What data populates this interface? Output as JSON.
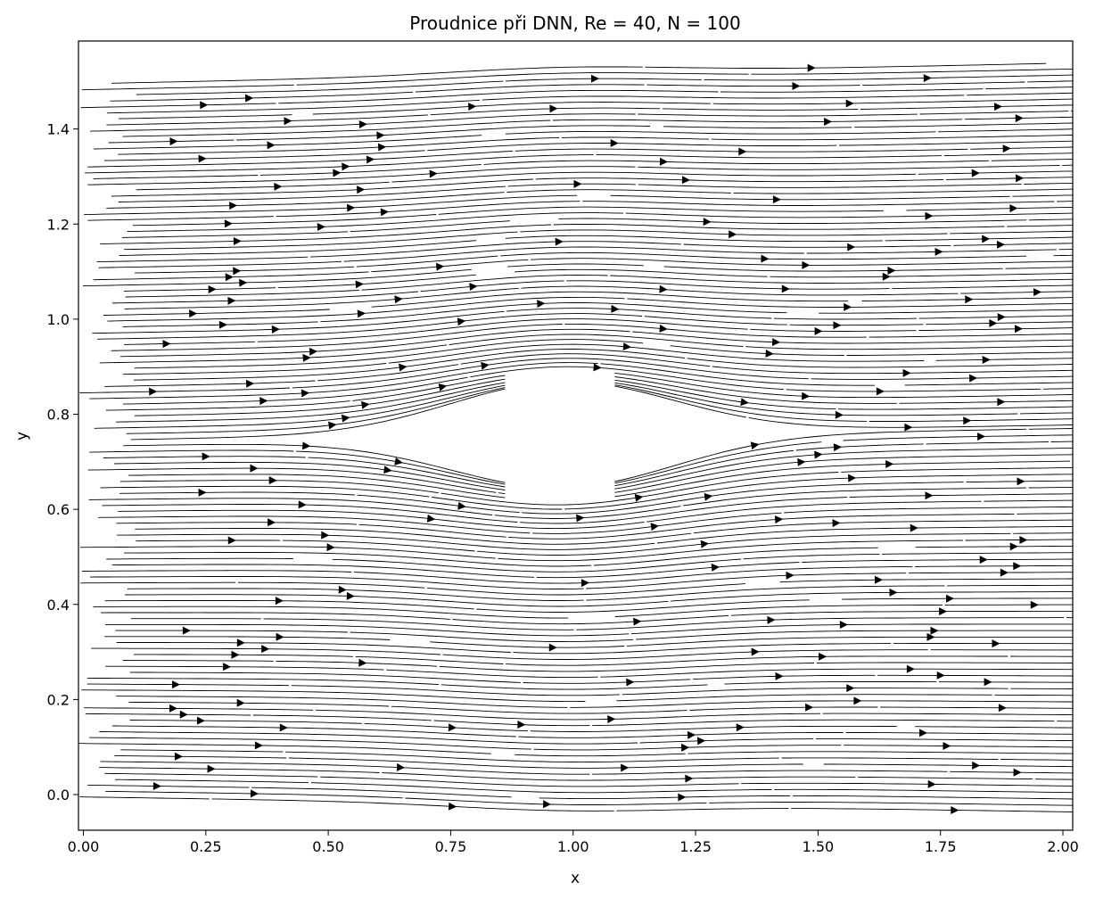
{
  "chart_data": {
    "type": "streamplot",
    "title": "Proudnice při DNN, Re = 40, N = 100",
    "xlabel": "x",
    "ylabel": "y",
    "xlim": [
      -0.01,
      2.02
    ],
    "ylim": [
      -0.075,
      1.585
    ],
    "x_ticks": [
      {
        "value": 0.0,
        "label": "0.00"
      },
      {
        "value": 0.25,
        "label": "0.25"
      },
      {
        "value": 0.5,
        "label": "0.50"
      },
      {
        "value": 0.75,
        "label": "0.75"
      },
      {
        "value": 1.0,
        "label": "1.00"
      },
      {
        "value": 1.25,
        "label": "1.25"
      },
      {
        "value": 1.5,
        "label": "1.50"
      },
      {
        "value": 1.75,
        "label": "1.75"
      },
      {
        "value": 2.0,
        "label": "2.00"
      }
    ],
    "y_ticks": [
      {
        "value": 0.0,
        "label": "0.0"
      },
      {
        "value": 0.2,
        "label": "0.2"
      },
      {
        "value": 0.4,
        "label": "0.4"
      },
      {
        "value": 0.6,
        "label": "0.6"
      },
      {
        "value": 0.8,
        "label": "0.8"
      },
      {
        "value": 1.0,
        "label": "1.0"
      },
      {
        "value": 1.2,
        "label": "1.2"
      },
      {
        "value": 1.4,
        "label": "1.4"
      }
    ],
    "flow": {
      "obstacle_center": [
        0.98,
        0.74
      ],
      "obstacle_radius": 0.085,
      "y_start": -0.005,
      "y_end": 1.505,
      "y_step": 0.0125,
      "gap_probability": 0.12
    },
    "grid": false,
    "line_color": "#000000"
  }
}
